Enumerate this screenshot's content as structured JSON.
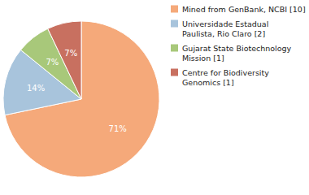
{
  "chart_data": {
    "type": "pie",
    "categories": [
      "Mined from GenBank, NCBI [10]",
      "Universidade Estadual\nPaulista, Rio Claro [2]",
      "Gujarat State Biotechnology\nMission [1]",
      "Centre for Biodiversity\nGenomics [1]"
    ],
    "values": [
      71,
      14,
      7,
      7
    ],
    "value_labels": [
      "71%",
      "14%",
      "7%",
      "7%"
    ],
    "colors": [
      "#F5A97A",
      "#A8C4DC",
      "#A8C87A",
      "#C87060"
    ],
    "data_labels": true,
    "legend": "right"
  }
}
